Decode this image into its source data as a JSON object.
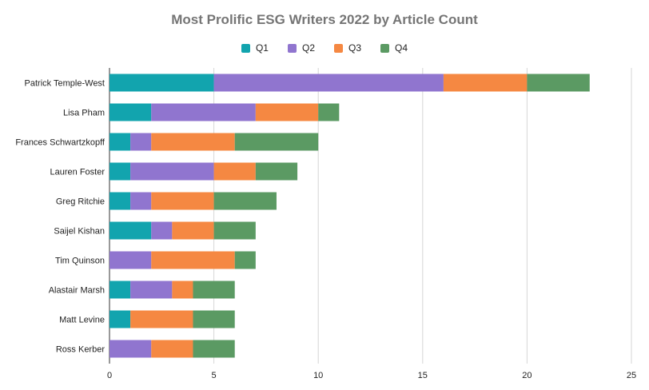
{
  "chart_data": {
    "type": "bar",
    "orientation": "horizontal",
    "stacked": true,
    "title": "Most Prolific ESG Writers 2022 by Article Count",
    "categories": [
      "Patrick Temple-West",
      "Lisa Pham",
      "Frances Schwartzkopff",
      "Lauren Foster",
      "Greg Ritchie",
      "Saijel Kishan",
      "Tim Quinson",
      "Alastair Marsh",
      "Matt Levine",
      "Ross Kerber"
    ],
    "series": [
      {
        "name": "Q1",
        "color": "#12a4ae",
        "values": [
          5,
          2,
          1,
          1,
          1,
          2,
          0,
          1,
          1,
          0
        ]
      },
      {
        "name": "Q2",
        "color": "#9075cf",
        "values": [
          11,
          5,
          1,
          4,
          1,
          1,
          2,
          2,
          0,
          2
        ]
      },
      {
        "name": "Q3",
        "color": "#f58842",
        "values": [
          4,
          3,
          4,
          2,
          3,
          2,
          4,
          1,
          3,
          2
        ]
      },
      {
        "name": "Q4",
        "color": "#5b9a63",
        "values": [
          3,
          1,
          4,
          2,
          3,
          2,
          1,
          2,
          2,
          2
        ]
      }
    ],
    "xlim": [
      0,
      25
    ],
    "xticks": [
      "0",
      "5",
      "10",
      "15",
      "20",
      "25"
    ],
    "grid": true,
    "legend": "top-center"
  }
}
